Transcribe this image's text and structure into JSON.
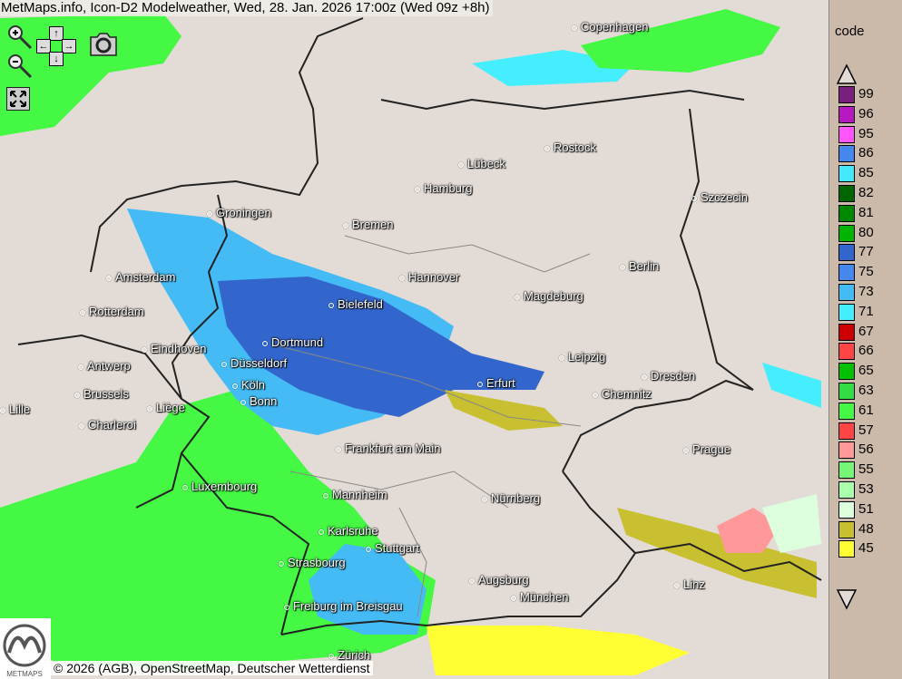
{
  "header": {
    "title": "MetMaps.info, Icon-D2 Modelweather, Wed, 28. Jan. 2026 17:00z (Wed 09z +8h)"
  },
  "controls": {
    "zoom_in": "zoom-in",
    "zoom_out": "zoom-out",
    "pan_up": "↑",
    "pan_down": "↓",
    "pan_left": "←",
    "pan_right": "→",
    "screenshot": "camera",
    "fullscreen": "expand"
  },
  "footer": {
    "copyright": "© 2026 (AGB), OpenStreetMap, Deutscher Wetterdienst",
    "logo_text": "METMAPS"
  },
  "cities": [
    {
      "name": "Copenhagen"
    },
    {
      "name": "Rostock"
    },
    {
      "name": "Lübeck"
    },
    {
      "name": "Hamburg"
    },
    {
      "name": "Szczecin"
    },
    {
      "name": "Groningen"
    },
    {
      "name": "Bremen"
    },
    {
      "name": "Berlin"
    },
    {
      "name": "Amsterdam"
    },
    {
      "name": "Hannover"
    },
    {
      "name": "Magdeburg"
    },
    {
      "name": "Bielefeld"
    },
    {
      "name": "Rotterdam"
    },
    {
      "name": "Eindhoven"
    },
    {
      "name": "Dortmund"
    },
    {
      "name": "Leipzig"
    },
    {
      "name": "Antwerp"
    },
    {
      "name": "Düsseldorf"
    },
    {
      "name": "Dresden"
    },
    {
      "name": "Erfurt"
    },
    {
      "name": "Köln"
    },
    {
      "name": "Brussels"
    },
    {
      "name": "Chemnitz"
    },
    {
      "name": "Bonn"
    },
    {
      "name": "Lille"
    },
    {
      "name": "Liège"
    },
    {
      "name": "Charleroi"
    },
    {
      "name": "Frankfurt am Main"
    },
    {
      "name": "Prague"
    },
    {
      "name": "Luxembourg"
    },
    {
      "name": "Mannheim"
    },
    {
      "name": "Nürnberg"
    },
    {
      "name": "Karlsruhe"
    },
    {
      "name": "Stuttgart"
    },
    {
      "name": "Strasbourg"
    },
    {
      "name": "Augsburg"
    },
    {
      "name": "Linz"
    },
    {
      "name": "München"
    },
    {
      "name": "Freiburg im Breisgau"
    },
    {
      "name": "Zürich"
    }
  ],
  "legend": {
    "title": "code",
    "entries": [
      {
        "code": "99",
        "color": "#7a1f7e"
      },
      {
        "code": "96",
        "color": "#b818c0"
      },
      {
        "code": "95",
        "color": "#ff55ff"
      },
      {
        "code": "86",
        "color": "#4488ee"
      },
      {
        "code": "85",
        "color": "#44e8ff"
      },
      {
        "code": "82",
        "color": "#006600"
      },
      {
        "code": "81",
        "color": "#008800"
      },
      {
        "code": "80",
        "color": "#00b400"
      },
      {
        "code": "77",
        "color": "#3366cc"
      },
      {
        "code": "75",
        "color": "#4488ee"
      },
      {
        "code": "73",
        "color": "#44bbf5"
      },
      {
        "code": "71",
        "color": "#44eeff"
      },
      {
        "code": "67",
        "color": "#cc0000"
      },
      {
        "code": "66",
        "color": "#ff4444"
      },
      {
        "code": "65",
        "color": "#00c000"
      },
      {
        "code": "63",
        "color": "#33dd44"
      },
      {
        "code": "61",
        "color": "#44f844"
      },
      {
        "code": "57",
        "color": "#ff4444"
      },
      {
        "code": "56",
        "color": "#ff9999"
      },
      {
        "code": "55",
        "color": "#77f577"
      },
      {
        "code": "53",
        "color": "#aaffaa"
      },
      {
        "code": "51",
        "color": "#ddffdd"
      },
      {
        "code": "48",
        "color": "#c8c030"
      },
      {
        "code": "45",
        "color": "#ffff33"
      }
    ]
  }
}
